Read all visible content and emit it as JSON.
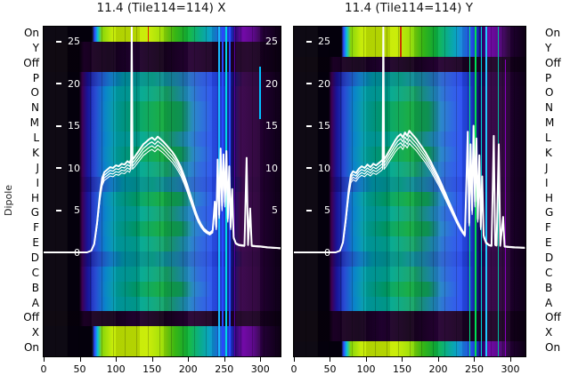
{
  "figure": {
    "dipole_axis_label": "Dipole"
  },
  "row_labels": [
    "On",
    "Y",
    "Off",
    "P",
    "O",
    "N",
    "M",
    "L",
    "K",
    "J",
    "I",
    "H",
    "G",
    "F",
    "E",
    "D",
    "C",
    "B",
    "A",
    "Off",
    "X",
    "On"
  ],
  "x_ticks": [
    0,
    50,
    100,
    150,
    200,
    250,
    300
  ],
  "value_ticks_left": [
    {
      "label": "25",
      "value": 25,
      "dash": true
    },
    {
      "label": "20",
      "value": 20,
      "dash": true
    },
    {
      "label": "15",
      "value": 15,
      "dash": true
    },
    {
      "label": "10",
      "value": 10,
      "dash": true
    },
    {
      "label": "5",
      "value": 5,
      "dash": true
    },
    {
      "label": "0",
      "value": 0,
      "dash": false
    }
  ],
  "value_ticks_right": [
    {
      "label": "25",
      "value": 25
    },
    {
      "label": "20",
      "value": 20
    },
    {
      "label": "15",
      "value": 15
    },
    {
      "label": "10",
      "value": 10
    },
    {
      "label": "5",
      "value": 5
    }
  ],
  "palette": {
    "bright": [
      [
        0.0,
        "#04000a"
      ],
      [
        0.205,
        "#04000a"
      ],
      [
        0.215,
        "#2244ff"
      ],
      [
        0.228,
        "#00c0d8"
      ],
      [
        0.245,
        "#7fd400"
      ],
      [
        0.29,
        "#c4ea00"
      ],
      [
        0.44,
        "#c9ec00"
      ],
      [
        0.5,
        "#9fdf00"
      ],
      [
        0.555,
        "#3ecb14"
      ],
      [
        0.61,
        "#0fb83a"
      ],
      [
        0.655,
        "#00ab7d"
      ],
      [
        0.7,
        "#009fc0"
      ],
      [
        0.735,
        "#1f78e8"
      ],
      [
        0.765,
        "#2b57ff"
      ],
      [
        0.79,
        "#1a3ad8"
      ],
      [
        0.812,
        "#2a0070"
      ],
      [
        0.842,
        "#6d00a4"
      ],
      [
        0.885,
        "#570086"
      ],
      [
        0.925,
        "#270039"
      ],
      [
        1.0,
        "#0e0014"
      ]
    ],
    "mid_a": [
      [
        0,
        "#05000a"
      ],
      [
        0.15,
        "#05000a"
      ],
      [
        0.163,
        "#45005c"
      ],
      [
        0.185,
        "#1c16a8"
      ],
      [
        0.22,
        "#1f46d2"
      ],
      [
        0.26,
        "#007fc8"
      ],
      [
        0.31,
        "#00a3a8"
      ],
      [
        0.42,
        "#00a88e"
      ],
      [
        0.52,
        "#16a565"
      ],
      [
        0.6,
        "#1f90bb"
      ],
      [
        0.655,
        "#2a68da"
      ],
      [
        0.72,
        "#2b50f2"
      ],
      [
        0.765,
        "#1f3fe0"
      ],
      [
        0.8,
        "#150b66"
      ],
      [
        0.83,
        "#37014b"
      ],
      [
        0.9,
        "#2b0039"
      ],
      [
        0.955,
        "#1a0026"
      ],
      [
        1,
        "#100018"
      ]
    ],
    "mid_g": [
      [
        0,
        "#05000a"
      ],
      [
        0.15,
        "#05000a"
      ],
      [
        0.163,
        "#45005c"
      ],
      [
        0.185,
        "#1c16a8"
      ],
      [
        0.22,
        "#1f46d2"
      ],
      [
        0.26,
        "#0082c4"
      ],
      [
        0.31,
        "#00a49e"
      ],
      [
        0.4,
        "#00a567"
      ],
      [
        0.5,
        "#12ab3f"
      ],
      [
        0.58,
        "#0fa05a"
      ],
      [
        0.635,
        "#2383c8"
      ],
      [
        0.72,
        "#2b50f2"
      ],
      [
        0.765,
        "#1f3fe0"
      ],
      [
        0.8,
        "#150b66"
      ],
      [
        0.83,
        "#37014b"
      ],
      [
        0.9,
        "#2b0039"
      ],
      [
        0.955,
        "#1a0026"
      ],
      [
        1,
        "#100018"
      ]
    ],
    "mid_b": [
      [
        0,
        "#05000a"
      ],
      [
        0.15,
        "#05000a"
      ],
      [
        0.163,
        "#3c0050"
      ],
      [
        0.185,
        "#180f8e"
      ],
      [
        0.23,
        "#1b3dbd"
      ],
      [
        0.28,
        "#0b6ec0"
      ],
      [
        0.34,
        "#0094a4"
      ],
      [
        0.46,
        "#00927e"
      ],
      [
        0.56,
        "#1b87a9"
      ],
      [
        0.645,
        "#2a60d0"
      ],
      [
        0.72,
        "#2747e8"
      ],
      [
        0.77,
        "#1c35cc"
      ],
      [
        0.805,
        "#12085c"
      ],
      [
        0.84,
        "#320146"
      ],
      [
        0.91,
        "#260034"
      ],
      [
        1,
        "#0e0016"
      ]
    ],
    "dark": [
      [
        0,
        "#060008"
      ],
      [
        0.15,
        "#060008"
      ],
      [
        0.17,
        "#1e0026"
      ],
      [
        0.28,
        "#120018"
      ],
      [
        0.38,
        "#220130"
      ],
      [
        0.5,
        "#140119"
      ],
      [
        0.62,
        "#260133"
      ],
      [
        0.74,
        "#18011f"
      ],
      [
        0.86,
        "#200128"
      ],
      [
        1,
        "#0a000e"
      ]
    ]
  },
  "curve_color": "#ffffff",
  "chart_data": [
    {
      "type": "heatmap",
      "title": "11.4 (Tile114=114) X",
      "x_max": 328,
      "x_ticks": [
        0,
        50,
        100,
        150,
        200,
        250,
        300
      ],
      "row_styles": [
        "bright",
        "dark",
        "dark",
        "mid_b",
        "mid_a",
        "mid_g",
        "mid_g",
        "mid_a",
        "mid_g",
        "mid_a",
        "mid_b",
        "mid_g",
        "mid_a",
        "mid_g",
        "mid_a",
        "mid_b",
        "mid_a",
        "mid_g",
        "mid_a",
        "dark",
        "bright",
        "bright"
      ],
      "overlay": {
        "red_line": {
          "x": 144,
          "color": "#dd2200",
          "top": 0.0,
          "bottom": 0.046
        },
        "stripes": [
          {
            "x": 242,
            "w": 1.5,
            "color": "#18b8ff",
            "top": 0,
            "bottom": 1
          },
          {
            "x": 247,
            "w": 1.5,
            "color": "#2848ff",
            "top": 0,
            "bottom": 1
          },
          {
            "x": 252,
            "w": 1.5,
            "color": "#00d8e0",
            "top": 0,
            "bottom": 1
          },
          {
            "x": 257,
            "w": 1.5,
            "color": "#2848ff",
            "top": 0,
            "bottom": 1
          },
          {
            "x": 264,
            "w": 1.0,
            "color": "#5800a0",
            "top": 0,
            "bottom": 1
          },
          {
            "x": 299,
            "w": 1.5,
            "color": "#00c0ff",
            "top": 0.12,
            "bottom": 0.28
          }
        ]
      },
      "series": {
        "name": "dipole spectra overlay",
        "points": [
          [
            0,
            0
          ],
          [
            60,
            0
          ],
          [
            66,
            0.2
          ],
          [
            70,
            1
          ],
          [
            74,
            3.5
          ],
          [
            78,
            7
          ],
          [
            81,
            8.8
          ],
          [
            84,
            9.5
          ],
          [
            88,
            9.8
          ],
          [
            92,
            10.1
          ],
          [
            96,
            10.0
          ],
          [
            100,
            10.3
          ],
          [
            104,
            10.2
          ],
          [
            108,
            10.5
          ],
          [
            112,
            10.4
          ],
          [
            116,
            10.8
          ],
          [
            119,
            10.6
          ],
          [
            121,
            11
          ],
          [
            122,
            27
          ],
          [
            123,
            11
          ],
          [
            126,
            11.3
          ],
          [
            130,
            11.8
          ],
          [
            134,
            12.3
          ],
          [
            138,
            12.8
          ],
          [
            142,
            13.1
          ],
          [
            146,
            13.4
          ],
          [
            150,
            13.6
          ],
          [
            154,
            13.3
          ],
          [
            158,
            13.7
          ],
          [
            162,
            13.4
          ],
          [
            166,
            13.1
          ],
          [
            170,
            12.7
          ],
          [
            174,
            12.3
          ],
          [
            178,
            11.9
          ],
          [
            182,
            11.4
          ],
          [
            186,
            10.8
          ],
          [
            190,
            10.1
          ],
          [
            194,
            9.2
          ],
          [
            198,
            8.2
          ],
          [
            202,
            7.1
          ],
          [
            206,
            6.0
          ],
          [
            210,
            4.9
          ],
          [
            214,
            4.0
          ],
          [
            218,
            3.3
          ],
          [
            222,
            2.8
          ],
          [
            226,
            2.5
          ],
          [
            230,
            2.3
          ],
          [
            234,
            2.6
          ],
          [
            237,
            6
          ],
          [
            239,
            3
          ],
          [
            241,
            11
          ],
          [
            243,
            4.5
          ],
          [
            245,
            12.3
          ],
          [
            247,
            5.5
          ],
          [
            249,
            11.6
          ],
          [
            251,
            6
          ],
          [
            253,
            12.0
          ],
          [
            255,
            4
          ],
          [
            257,
            10.2
          ],
          [
            259,
            3
          ],
          [
            261,
            7.5
          ],
          [
            263,
            1.8
          ],
          [
            266,
            1.1
          ],
          [
            270,
            0.9
          ],
          [
            274,
            0.85
          ],
          [
            278,
            0.8
          ],
          [
            281,
            11.2
          ],
          [
            283,
            0.9
          ],
          [
            286,
            5.2
          ],
          [
            288,
            0.8
          ],
          [
            293,
            0.75
          ],
          [
            300,
            0.7
          ],
          [
            310,
            0.6
          ],
          [
            328,
            0.5
          ]
        ]
      }
    },
    {
      "type": "heatmap",
      "title": "11.4 (Tile114=114) Y",
      "x_max": 321,
      "x_ticks": [
        0,
        50,
        100,
        150,
        200,
        250,
        300
      ],
      "row_styles": [
        "bright",
        "bright",
        "dark",
        "mid_b",
        "mid_a",
        "mid_g",
        "mid_g",
        "mid_a",
        "mid_g",
        "mid_a",
        "mid_b",
        "mid_g",
        "mid_a",
        "mid_g",
        "mid_a",
        "mid_b",
        "mid_a",
        "mid_g",
        "mid_a",
        "dark",
        "dark",
        "bright"
      ],
      "overlay": {
        "red_line": {
          "x": 147,
          "color": "#cc3300",
          "top": 0.0,
          "bottom": 0.092
        },
        "stripes": [
          {
            "x": 243,
            "w": 1.5,
            "color": "#00e080",
            "top": 0,
            "bottom": 1
          },
          {
            "x": 251,
            "w": 2.0,
            "color": "#00e050",
            "top": 0,
            "bottom": 1
          },
          {
            "x": 259,
            "w": 1.5,
            "color": "#00d8d0",
            "top": 0,
            "bottom": 1
          },
          {
            "x": 266,
            "w": 1.5,
            "color": "#20c8ff",
            "top": 0,
            "bottom": 1
          },
          {
            "x": 283,
            "w": 1.0,
            "color": "#00c0a0",
            "top": 0,
            "bottom": 1
          },
          {
            "x": 293,
            "w": 1.0,
            "color": "#8800c0",
            "top": 0.1,
            "bottom": 1
          }
        ]
      },
      "series": {
        "name": "dipole spectra overlay",
        "points": [
          [
            0,
            0
          ],
          [
            58,
            0
          ],
          [
            64,
            0.2
          ],
          [
            68,
            1.2
          ],
          [
            72,
            4
          ],
          [
            76,
            7.5
          ],
          [
            79,
            9.2
          ],
          [
            82,
            9.6
          ],
          [
            86,
            9.4
          ],
          [
            90,
            9.9
          ],
          [
            94,
            10.2
          ],
          [
            98,
            10.0
          ],
          [
            102,
            10.4
          ],
          [
            106,
            10.1
          ],
          [
            110,
            10.5
          ],
          [
            114,
            10.3
          ],
          [
            118,
            10.6
          ],
          [
            121,
            10.8
          ],
          [
            123,
            11
          ],
          [
            124,
            27
          ],
          [
            125,
            11
          ],
          [
            128,
            11.4
          ],
          [
            132,
            12.0
          ],
          [
            136,
            12.6
          ],
          [
            140,
            13.2
          ],
          [
            144,
            13.7
          ],
          [
            148,
            14.0
          ],
          [
            151,
            13.6
          ],
          [
            154,
            14.2
          ],
          [
            157,
            13.8
          ],
          [
            160,
            14.4
          ],
          [
            163,
            14.1
          ],
          [
            166,
            13.8
          ],
          [
            170,
            13.4
          ],
          [
            174,
            12.9
          ],
          [
            178,
            12.4
          ],
          [
            182,
            11.9
          ],
          [
            186,
            11.3
          ],
          [
            190,
            10.7
          ],
          [
            194,
            10.0
          ],
          [
            198,
            9.3
          ],
          [
            202,
            8.6
          ],
          [
            206,
            7.8
          ],
          [
            210,
            7.0
          ],
          [
            214,
            6.2
          ],
          [
            218,
            5.4
          ],
          [
            222,
            4.6
          ],
          [
            226,
            3.8
          ],
          [
            230,
            3.1
          ],
          [
            234,
            2.5
          ],
          [
            237,
            2.1
          ],
          [
            239,
            8
          ],
          [
            241,
            14.3
          ],
          [
            243,
            3.5
          ],
          [
            245,
            12.8
          ],
          [
            247,
            5
          ],
          [
            249,
            15
          ],
          [
            251,
            6
          ],
          [
            253,
            13.5
          ],
          [
            255,
            4
          ],
          [
            257,
            11.5
          ],
          [
            259,
            3
          ],
          [
            261,
            9
          ],
          [
            263,
            2
          ],
          [
            266,
            1.2
          ],
          [
            270,
            0.9
          ],
          [
            274,
            0.8
          ],
          [
            277,
            13.8
          ],
          [
            279,
            0.9
          ],
          [
            281,
            0.85
          ],
          [
            284,
            12.8
          ],
          [
            286,
            0.8
          ],
          [
            290,
            4.2
          ],
          [
            292,
            0.7
          ],
          [
            298,
            0.65
          ],
          [
            306,
            0.6
          ],
          [
            320,
            0.55
          ]
        ]
      }
    }
  ]
}
